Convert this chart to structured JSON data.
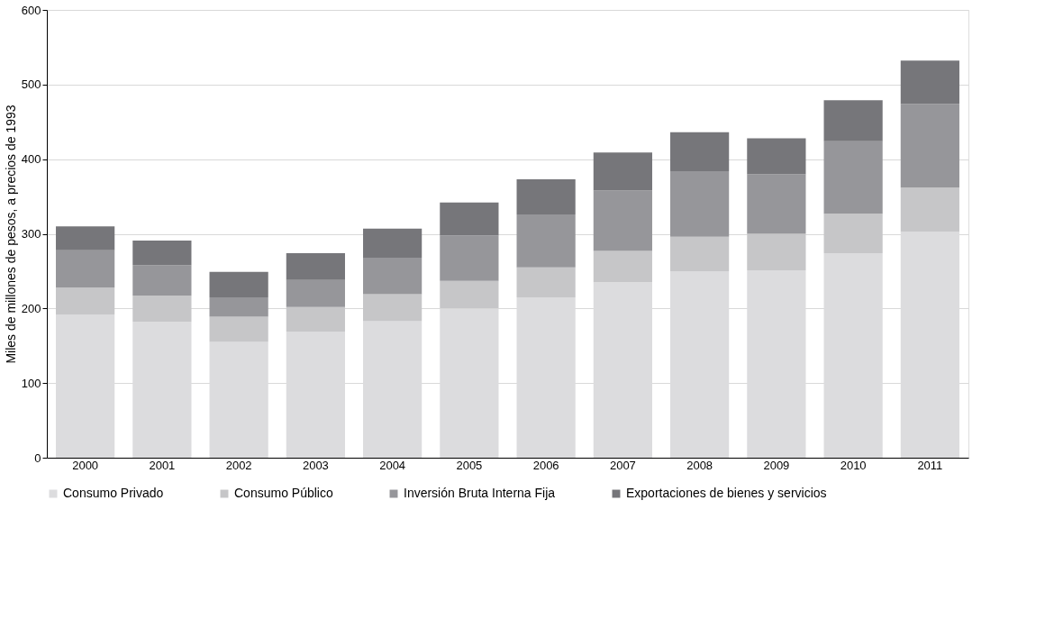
{
  "chart_data": {
    "type": "bar",
    "stacked": true,
    "ylabel": "Miles de millones de pesos, a precios de 1993",
    "categories": [
      "2000",
      "2001",
      "2002",
      "2003",
      "2004",
      "2005",
      "2006",
      "2007",
      "2008",
      "2009",
      "2010",
      "2011"
    ],
    "series": [
      {
        "name": "Consumo Privado",
        "color": "#dcdcde",
        "values": [
          192,
          182,
          155,
          169,
          183,
          200,
          215,
          235,
          250,
          251,
          274,
          303
        ]
      },
      {
        "name": "Consumo Público",
        "color": "#c6c6c8",
        "values": [
          36,
          35,
          34,
          33,
          36,
          37,
          40,
          42,
          46,
          49,
          53,
          59
        ]
      },
      {
        "name": "Inversión Bruta Interna Fija",
        "color": "#96969a",
        "values": [
          50,
          41,
          26,
          36,
          49,
          61,
          71,
          81,
          88,
          80,
          97,
          112
        ]
      },
      {
        "name": "Exportaciones de bienes y servicios",
        "color": "#76767a",
        "values": [
          32,
          33,
          34,
          36,
          39,
          44,
          47,
          51,
          52,
          48,
          55,
          58
        ]
      }
    ],
    "ylim": [
      0,
      600
    ],
    "yticks": [
      0,
      100,
      200,
      300,
      400,
      500,
      600
    ],
    "grid": "y",
    "legend": "bottom"
  }
}
